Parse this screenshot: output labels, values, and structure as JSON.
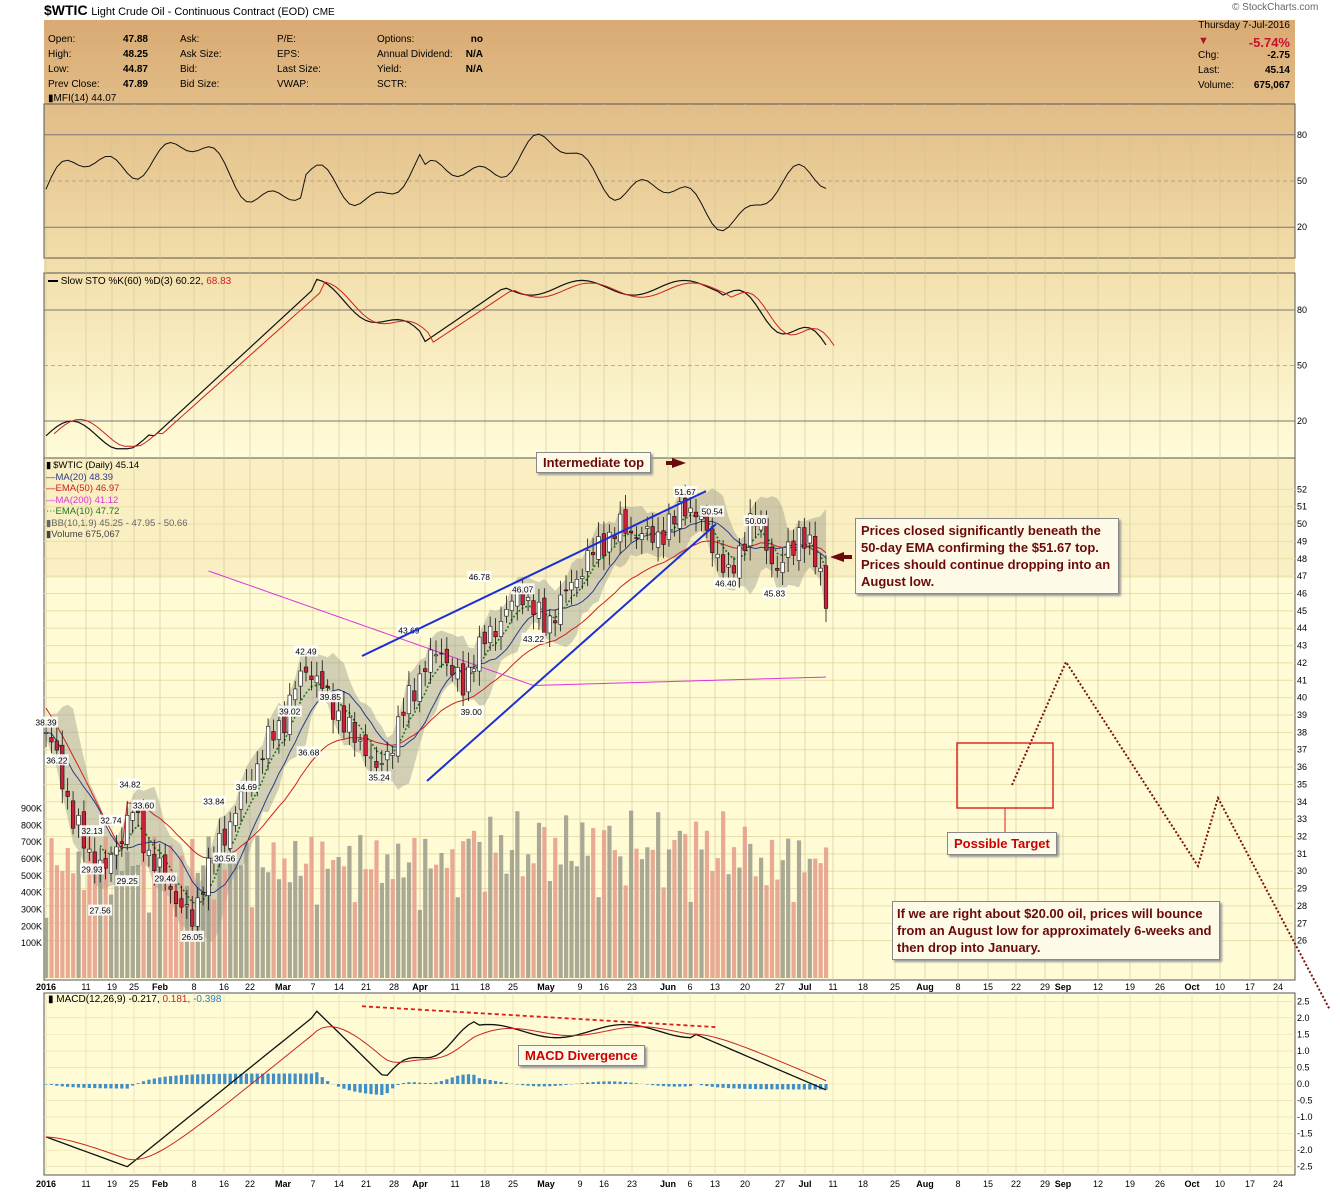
{
  "header": {
    "symbol": "$WTIC",
    "name": "Light Crude Oil - Continuous Contract (EOD)",
    "exchange": "CME",
    "watermark": "© StockCharts.com",
    "stats_col1": [
      [
        "Open:",
        "47.88"
      ],
      [
        "High:",
        "48.25"
      ],
      [
        "Low:",
        "44.87"
      ],
      [
        "Prev Close:",
        "47.89"
      ]
    ],
    "stats_col2": [
      "Ask:",
      "Ask Size:",
      "Bid:",
      "Bid Size:"
    ],
    "stats_col3": [
      "P/E:",
      "EPS:",
      "Last Size:",
      "VWAP:"
    ],
    "stats_col4": [
      [
        "Options:",
        "no"
      ],
      [
        "Annual Dividend:",
        "N/A"
      ],
      [
        "Yield:",
        "N/A"
      ],
      [
        "SCTR:",
        ""
      ]
    ],
    "quote": {
      "date": "Thursday  7-Jul-2016",
      "pct_change": "-5.74%",
      "rows": [
        [
          "Chg:",
          "-2.75"
        ],
        [
          "Last:",
          "45.14"
        ],
        [
          "Volume:",
          "675,067"
        ]
      ]
    }
  },
  "panels": {
    "mfi_label": "MFI(14) 44.07",
    "sto_label_main": "Slow STO %K(60) %D(3) 60.22,",
    "sto_label_d": "68.83",
    "macd_label_main": "MACD(12,26,9) -0.217,",
    "macd_label_signal": "0.181,",
    "macd_label_hist": "-0.398",
    "legend": [
      {
        "text": "$WTIC (Daily) 45.14",
        "color": "#000000"
      },
      {
        "text": "MA(20) 48.39",
        "color": "#2b3a8a"
      },
      {
        "text": "EMA(50) 46.97",
        "color": "#cc2222"
      },
      {
        "text": "MA(200) 41.12",
        "color": "#dd33dd"
      },
      {
        "text": "EMA(10) 47.72",
        "color": "#1f7a1f"
      },
      {
        "text": "BB(10,1.9) 45.25 - 47.95 - 50.66",
        "color": "#666666"
      },
      {
        "text": "Volume 675,067",
        "color": "#444444"
      }
    ]
  },
  "annotations": {
    "intermediate_top": "Intermediate top",
    "prices_closed": "Prices closed significantly beneath the 50-day EMA confirming the $51.67 top. Prices should continue dropping into an August low.",
    "possible_target": "Possible Target",
    "twenty_dollar": "If we are right about $20.00 oil, prices will bounce from an August low for approximately 6-weeks and then drop into January.",
    "macd_divergence": "MACD Divergence"
  },
  "chart_data": {
    "type": "candlestick",
    "title": "$WTIC Light Crude Oil - Continuous Contract (EOD) CME",
    "x_axis_labels": [
      "2016",
      "11",
      "19",
      "25",
      "Feb",
      "8",
      "16",
      "22",
      "Mar",
      "7",
      "14",
      "21",
      "28",
      "Apr",
      "11",
      "18",
      "25",
      "May",
      "9",
      "16",
      "23",
      "Jun",
      "6",
      "13",
      "20",
      "27",
      "Jul",
      "11",
      "18",
      "25",
      "Aug",
      "8",
      "15",
      "22",
      "29",
      "Sep",
      "12",
      "19",
      "26",
      "Oct",
      "10",
      "17",
      "24"
    ],
    "price_axis": {
      "min": 25,
      "max": 53,
      "ticks": [
        26,
        27,
        28,
        29,
        30,
        31,
        32,
        33,
        34,
        35,
        36,
        37,
        38,
        39,
        40,
        41,
        42,
        43,
        44,
        45,
        46,
        47,
        48,
        49,
        50,
        51,
        52
      ]
    },
    "volume_axis": {
      "ticks": [
        "100K",
        "200K",
        "300K",
        "400K",
        "500K",
        "600K",
        "700K",
        "800K",
        "900K"
      ]
    },
    "mfi_axis": {
      "ticks": [
        20,
        50,
        80
      ]
    },
    "sto_axis": {
      "ticks": [
        20,
        50,
        80
      ]
    },
    "macd_axis": {
      "ticks": [
        "2.5",
        "2.0",
        "1.5",
        "1.0",
        "0.5",
        "0.0",
        "-0.5",
        "-1.0",
        "-1.5",
        "-2.0",
        "-2.5"
      ]
    },
    "price_labels": [
      {
        "text": "38.39",
        "price": 38.39
      },
      {
        "text": "36.22",
        "price": 36.22
      },
      {
        "text": "32.13",
        "price": 32.13
      },
      {
        "text": "32.74",
        "price": 32.74
      },
      {
        "text": "34.82",
        "price": 34.82
      },
      {
        "text": "33.60",
        "price": 33.6
      },
      {
        "text": "29.93",
        "price": 29.93
      },
      {
        "text": "29.25",
        "price": 29.25
      },
      {
        "text": "29.40",
        "price": 29.4
      },
      {
        "text": "27.56",
        "price": 27.56
      },
      {
        "text": "26.05",
        "price": 26.05
      },
      {
        "text": "30.56",
        "price": 30.56
      },
      {
        "text": "33.84",
        "price": 33.84
      },
      {
        "text": "34.69",
        "price": 34.69
      },
      {
        "text": "39.02",
        "price": 39.02
      },
      {
        "text": "36.68",
        "price": 36.68
      },
      {
        "text": "42.49",
        "price": 42.49
      },
      {
        "text": "39.85",
        "price": 39.85
      },
      {
        "text": "35.24",
        "price": 35.24
      },
      {
        "text": "43.69",
        "price": 43.69
      },
      {
        "text": "39.00",
        "price": 39.0
      },
      {
        "text": "46.78",
        "price": 46.78
      },
      {
        "text": "46.07",
        "price": 46.07
      },
      {
        "text": "43.22",
        "price": 43.22
      },
      {
        "text": "51.67",
        "price": 51.67
      },
      {
        "text": "50.54",
        "price": 50.54
      },
      {
        "text": "50.00",
        "price": 50.0
      },
      {
        "text": "46.40",
        "price": 46.4
      },
      {
        "text": "45.83",
        "price": 45.83
      }
    ],
    "close_keypoints": [
      [
        0,
        38.0
      ],
      [
        4,
        36.5
      ],
      [
        10,
        33.0
      ],
      [
        16,
        31.0
      ],
      [
        22,
        30.0
      ],
      [
        26,
        31.5
      ],
      [
        32,
        33.5
      ],
      [
        38,
        31.0
      ],
      [
        44,
        29.5
      ],
      [
        50,
        28.0
      ],
      [
        54,
        27.0
      ],
      [
        58,
        29.5
      ],
      [
        64,
        31.5
      ],
      [
        70,
        33.5
      ],
      [
        76,
        35.5
      ],
      [
        82,
        37.5
      ],
      [
        88,
        38.8
      ],
      [
        92,
        40.5
      ],
      [
        96,
        41.8
      ],
      [
        100,
        41.0
      ],
      [
        106,
        39.5
      ],
      [
        112,
        38.0
      ],
      [
        118,
        37.2
      ],
      [
        122,
        35.6
      ],
      [
        128,
        37.5
      ],
      [
        134,
        40.0
      ],
      [
        140,
        41.8
      ],
      [
        146,
        42.8
      ],
      [
        150,
        41.5
      ],
      [
        154,
        40.5
      ],
      [
        158,
        42.5
      ],
      [
        164,
        43.6
      ],
      [
        170,
        45.0
      ],
      [
        176,
        46.0
      ],
      [
        180,
        45.2
      ],
      [
        184,
        44.0
      ],
      [
        188,
        45.0
      ],
      [
        194,
        46.5
      ],
      [
        200,
        48.0
      ],
      [
        206,
        49.0
      ],
      [
        212,
        49.8
      ],
      [
        218,
        49.5
      ],
      [
        224,
        49.2
      ],
      [
        228,
        49.6
      ],
      [
        232,
        50.2
      ],
      [
        236,
        51.2
      ],
      [
        240,
        50.5
      ],
      [
        244,
        49.5
      ],
      [
        248,
        48.2
      ],
      [
        252,
        46.8
      ],
      [
        256,
        48.5
      ],
      [
        260,
        50.0
      ],
      [
        264,
        49.8
      ],
      [
        268,
        48.0
      ],
      [
        270,
        47.0
      ],
      [
        274,
        48.5
      ],
      [
        278,
        49.5
      ],
      [
        282,
        48.5
      ],
      [
        286,
        47.4
      ],
      [
        288,
        45.14
      ]
    ]
  }
}
